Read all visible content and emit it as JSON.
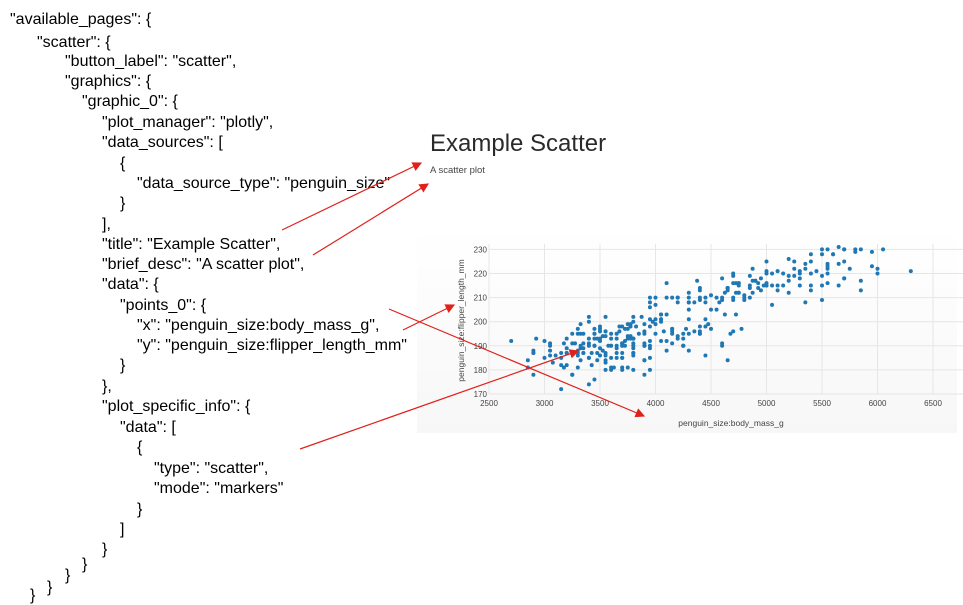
{
  "config_lines": [
    "\"available_pages\": {",
    "\"scatter\": {",
    "\"button_label\": \"scatter\",",
    "\"graphics\": {",
    "\"graphic_0\": {",
    "\"plot_manager\": \"plotly\",",
    "\"data_sources\": [",
    "{",
    "\"data_source_type\": \"penguin_size\"",
    "}",
    "],",
    "\"title\": \"Example Scatter\",",
    "\"brief_desc\": \"A scatter plot\",",
    "\"data\": {",
    "\"points_0\": {",
    "\"x\": \"penguin_size:body_mass_g\",",
    "\"y\": \"penguin_size:flipper_length_mm\"",
    "}",
    "},",
    "\"plot_specific_info\": {",
    "\"data\": [",
    "{",
    "\"type\": \"scatter\",",
    "\"mode\": \"markers\"",
    "}",
    "]",
    "}",
    "}",
    "}",
    "}",
    "}"
  ],
  "screenshot": {
    "title": "Example Scatter",
    "brief_desc": "A scatter plot"
  },
  "chart_data": {
    "type": "scatter",
    "xlabel": "penguin_size:body_mass_g",
    "ylabel": "penguin_size:flipper_length_mm",
    "xlim": [
      2500,
      6500
    ],
    "ylim": [
      170,
      231
    ],
    "xticks": [
      2500,
      3000,
      3500,
      4000,
      4500,
      5000,
      5500,
      6000,
      6500
    ],
    "yticks": [
      170,
      180,
      190,
      200,
      210,
      220,
      230
    ],
    "grid": true,
    "marker_color": "#1f77b4",
    "points": [
      [
        3750,
        181
      ],
      [
        3800,
        186
      ],
      [
        3250,
        195
      ],
      [
        3450,
        193
      ],
      [
        3650,
        190
      ],
      [
        3625,
        181
      ],
      [
        4675,
        195
      ],
      [
        3475,
        193
      ],
      [
        4250,
        190
      ],
      [
        3300,
        186
      ],
      [
        3700,
        180
      ],
      [
        3200,
        182
      ],
      [
        3800,
        191
      ],
      [
        4400,
        198
      ],
      [
        3700,
        185
      ],
      [
        3450,
        195
      ],
      [
        4500,
        197
      ],
      [
        3325,
        184
      ],
      [
        4200,
        194
      ],
      [
        3400,
        174
      ],
      [
        3600,
        180
      ],
      [
        3800,
        189
      ],
      [
        3950,
        185
      ],
      [
        3800,
        180
      ],
      [
        3800,
        187
      ],
      [
        3550,
        183
      ],
      [
        3200,
        187
      ],
      [
        3150,
        172
      ],
      [
        3950,
        180
      ],
      [
        3250,
        178
      ],
      [
        3900,
        178
      ],
      [
        3300,
        188
      ],
      [
        3900,
        184
      ],
      [
        3325,
        195
      ],
      [
        4150,
        196
      ],
      [
        3950,
        190
      ],
      [
        3550,
        180
      ],
      [
        3300,
        181
      ],
      [
        4650,
        184
      ],
      [
        3150,
        182
      ],
      [
        3900,
        195
      ],
      [
        3100,
        186
      ],
      [
        4400,
        196
      ],
      [
        3000,
        185
      ],
      [
        4600,
        190
      ],
      [
        3425,
        182
      ],
      [
        3450,
        190
      ],
      [
        4150,
        191
      ],
      [
        3500,
        186
      ],
      [
        4300,
        188
      ],
      [
        3450,
        190
      ],
      [
        4050,
        200
      ],
      [
        2900,
        187
      ],
      [
        3700,
        191
      ],
      [
        3550,
        186
      ],
      [
        3800,
        193
      ],
      [
        2850,
        181
      ],
      [
        3750,
        194
      ],
      [
        3150,
        185
      ],
      [
        4400,
        195
      ],
      [
        3600,
        185
      ],
      [
        4050,
        192
      ],
      [
        2850,
        184
      ],
      [
        3950,
        192
      ],
      [
        3350,
        195
      ],
      [
        4100,
        188
      ],
      [
        3050,
        190
      ],
      [
        4450,
        198
      ],
      [
        3600,
        190
      ],
      [
        3900,
        190
      ],
      [
        3550,
        196
      ],
      [
        4150,
        197
      ],
      [
        3700,
        190
      ],
      [
        4250,
        195
      ],
      [
        3700,
        191
      ],
      [
        3900,
        184
      ],
      [
        3550,
        187
      ],
      [
        4000,
        195
      ],
      [
        3200,
        189
      ],
      [
        4700,
        196
      ],
      [
        3800,
        187
      ],
      [
        4200,
        193
      ],
      [
        3350,
        191
      ],
      [
        3550,
        194
      ],
      [
        3800,
        190
      ],
      [
        3500,
        189
      ],
      [
        3950,
        189
      ],
      [
        3600,
        190
      ],
      [
        3550,
        202
      ],
      [
        4300,
        205
      ],
      [
        3400,
        185
      ],
      [
        4450,
        186
      ],
      [
        3300,
        187
      ],
      [
        4300,
        208
      ],
      [
        3700,
        190
      ],
      [
        4350,
        196
      ],
      [
        2900,
        178
      ],
      [
        4100,
        192
      ],
      [
        3725,
        192
      ],
      [
        4725,
        203
      ],
      [
        3075,
        183
      ],
      [
        4250,
        190
      ],
      [
        2925,
        193
      ],
      [
        3550,
        184
      ],
      [
        3750,
        199
      ],
      [
        3900,
        190
      ],
      [
        3175,
        181
      ],
      [
        4775,
        197
      ],
      [
        3825,
        198
      ],
      [
        4600,
        191
      ],
      [
        3200,
        193
      ],
      [
        4275,
        197
      ],
      [
        3900,
        191
      ],
      [
        4075,
        196
      ],
      [
        2900,
        188
      ],
      [
        3775,
        199
      ],
      [
        3350,
        189
      ],
      [
        3325,
        189
      ],
      [
        3150,
        187
      ],
      [
        3500,
        198
      ],
      [
        3450,
        176
      ],
      [
        3875,
        202
      ],
      [
        3050,
        186
      ],
      [
        4000,
        199
      ],
      [
        3275,
        191
      ],
      [
        4300,
        195
      ],
      [
        3050,
        191
      ],
      [
        4000,
        210
      ],
      [
        3325,
        190
      ],
      [
        3500,
        197
      ],
      [
        3500,
        193
      ],
      [
        4475,
        199
      ],
      [
        3425,
        187
      ],
      [
        3900,
        190
      ],
      [
        3175,
        191
      ],
      [
        3975,
        200
      ],
      [
        3400,
        185
      ],
      [
        4250,
        193
      ],
      [
        3400,
        193
      ],
      [
        3475,
        187
      ],
      [
        3050,
        188
      ],
      [
        3725,
        190
      ],
      [
        3000,
        192
      ],
      [
        3650,
        185
      ],
      [
        4250,
        190
      ],
      [
        3475,
        184
      ],
      [
        3450,
        195
      ],
      [
        3750,
        193
      ],
      [
        3700,
        187
      ],
      [
        4000,
        201
      ],
      [
        3500,
        192
      ],
      [
        3900,
        196
      ],
      [
        3650,
        193
      ],
      [
        3525,
        188
      ],
      [
        3725,
        197
      ],
      [
        3950,
        198
      ],
      [
        3250,
        178
      ],
      [
        3750,
        197
      ],
      [
        4150,
        195
      ],
      [
        3700,
        198
      ],
      [
        3800,
        193
      ],
      [
        3775,
        194
      ],
      [
        3700,
        185
      ],
      [
        4050,
        201
      ],
      [
        3575,
        190
      ],
      [
        4050,
        201
      ],
      [
        3300,
        197
      ],
      [
        3700,
        181
      ],
      [
        3450,
        190
      ],
      [
        4400,
        195
      ],
      [
        3600,
        181
      ],
      [
        3400,
        191
      ],
      [
        2900,
        187
      ],
      [
        3800,
        193
      ],
      [
        3300,
        195
      ],
      [
        4150,
        197
      ],
      [
        3400,
        200
      ],
      [
        3800,
        200
      ],
      [
        3700,
        191
      ],
      [
        4550,
        205
      ],
      [
        3200,
        187
      ],
      [
        4300,
        201
      ],
      [
        3350,
        187
      ],
      [
        4100,
        203
      ],
      [
        3600,
        195
      ],
      [
        3900,
        199
      ],
      [
        3850,
        195
      ],
      [
        4800,
        210
      ],
      [
        2700,
        192
      ],
      [
        4500,
        205
      ],
      [
        3950,
        210
      ],
      [
        3650,
        187
      ],
      [
        3550,
        196
      ],
      [
        3500,
        196
      ],
      [
        3675,
        196
      ],
      [
        4450,
        201
      ],
      [
        3400,
        190
      ],
      [
        4300,
        212
      ],
      [
        3250,
        187
      ],
      [
        3675,
        198
      ],
      [
        3325,
        199
      ],
      [
        3950,
        201
      ],
      [
        3600,
        193
      ],
      [
        4050,
        203
      ],
      [
        3350,
        187
      ],
      [
        3450,
        197
      ],
      [
        3250,
        191
      ],
      [
        4050,
        203
      ],
      [
        3800,
        202
      ],
      [
        3525,
        194
      ],
      [
        3950,
        206
      ],
      [
        3650,
        189
      ],
      [
        3650,
        195
      ],
      [
        4000,
        207
      ],
      [
        3400,
        202
      ],
      [
        3775,
        193
      ],
      [
        4100,
        210
      ],
      [
        3775,
        198
      ],
      [
        4500,
        211
      ],
      [
        5700,
        230
      ],
      [
        4450,
        210
      ],
      [
        5700,
        218
      ],
      [
        5400,
        215
      ],
      [
        4550,
        210
      ],
      [
        4800,
        211
      ],
      [
        5200,
        219
      ],
      [
        4400,
        209
      ],
      [
        5150,
        215
      ],
      [
        4650,
        214
      ],
      [
        5550,
        216
      ],
      [
        4650,
        214
      ],
      [
        5850,
        213
      ],
      [
        4200,
        210
      ],
      [
        5850,
        217
      ],
      [
        4150,
        210
      ],
      [
        6300,
        221
      ],
      [
        4800,
        209
      ],
      [
        5350,
        222
      ],
      [
        5700,
        218
      ],
      [
        5000,
        215
      ],
      [
        4400,
        213
      ],
      [
        5050,
        215
      ],
      [
        5000,
        215
      ],
      [
        5100,
        215
      ],
      [
        4100,
        216
      ],
      [
        5650,
        215
      ],
      [
        4600,
        210
      ],
      [
        5550,
        220
      ],
      [
        5250,
        222
      ],
      [
        4700,
        209
      ],
      [
        5050,
        207
      ],
      [
        6050,
        230
      ],
      [
        5150,
        220
      ],
      [
        5400,
        220
      ],
      [
        4950,
        213
      ],
      [
        5250,
        219
      ],
      [
        4350,
        208
      ],
      [
        5350,
        208
      ],
      [
        3950,
        208
      ],
      [
        5700,
        225
      ],
      [
        4300,
        210
      ],
      [
        4750,
        216
      ],
      [
        5550,
        222
      ],
      [
        4900,
        217
      ],
      [
        4200,
        210
      ],
      [
        5400,
        225
      ],
      [
        5100,
        213
      ],
      [
        5300,
        215
      ],
      [
        4850,
        210
      ],
      [
        5300,
        220
      ],
      [
        4400,
        210
      ],
      [
        5000,
        225
      ],
      [
        4900,
        217
      ],
      [
        5050,
        220
      ],
      [
        4300,
        208
      ],
      [
        5000,
        220
      ],
      [
        4450,
        208
      ],
      [
        5550,
        224
      ],
      [
        4200,
        208
      ],
      [
        5300,
        221
      ],
      [
        4400,
        214
      ],
      [
        5650,
        231
      ],
      [
        4700,
        219
      ],
      [
        5700,
        230
      ],
      [
        4650,
        214
      ],
      [
        5800,
        229
      ],
      [
        4700,
        220
      ],
      [
        5550,
        223
      ],
      [
        4750,
        216
      ],
      [
        5000,
        221
      ],
      [
        5100,
        221
      ],
      [
        5200,
        217
      ],
      [
        4700,
        216
      ],
      [
        5800,
        230
      ],
      [
        4600,
        209
      ],
      [
        6000,
        220
      ],
      [
        4750,
        215
      ],
      [
        5950,
        223
      ],
      [
        4625,
        212
      ],
      [
        5450,
        221
      ],
      [
        4725,
        212
      ],
      [
        5350,
        224
      ],
      [
        4750,
        212
      ],
      [
        5600,
        228
      ],
      [
        4600,
        218
      ],
      [
        5300,
        218
      ],
      [
        4875,
        212
      ],
      [
        5550,
        230
      ],
      [
        4950,
        218
      ],
      [
        5400,
        228
      ],
      [
        4750,
        212
      ],
      [
        5650,
        224
      ],
      [
        4850,
        214
      ],
      [
        5200,
        226
      ],
      [
        4925,
        216
      ],
      [
        4875,
        222
      ],
      [
        4625,
        203
      ],
      [
        5250,
        225
      ],
      [
        4850,
        219
      ],
      [
        5600,
        228
      ],
      [
        4975,
        215
      ],
      [
        5500,
        228
      ],
      [
        4725,
        216
      ],
      [
        5500,
        215
      ],
      [
        4700,
        210
      ],
      [
        5500,
        219
      ],
      [
        4575,
        208
      ],
      [
        5500,
        209
      ],
      [
        5000,
        216
      ],
      [
        5950,
        229
      ],
      [
        4650,
        213
      ],
      [
        5500,
        230
      ],
      [
        4375,
        217
      ],
      [
        5850,
        230
      ],
      [
        4875,
        217
      ],
      [
        6000,
        222
      ],
      [
        4925,
        214
      ],
      [
        4850,
        215
      ],
      [
        5750,
        222
      ],
      [
        5200,
        212
      ],
      [
        5400,
        213
      ]
    ]
  }
}
